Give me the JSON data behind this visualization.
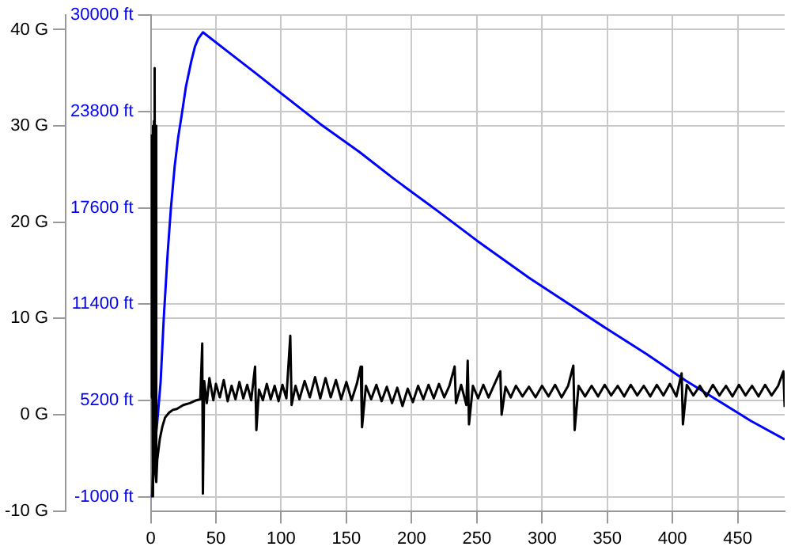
{
  "chart_data": {
    "type": "line",
    "xlim": [
      0,
      486
    ],
    "xticks": [
      0,
      50,
      100,
      150,
      200,
      250,
      300,
      350,
      400,
      450
    ],
    "ylim": [
      -1900,
      30000
    ],
    "yticks": [
      {
        "value": -1000,
        "label": "-1000 ft"
      },
      {
        "value": 5200,
        "label": "5200 ft"
      },
      {
        "value": 11400,
        "label": "11400 ft"
      },
      {
        "value": 17600,
        "label": "17600 ft"
      },
      {
        "value": 23800,
        "label": "23800 ft"
      },
      {
        "value": 30000,
        "label": "30000 ft"
      }
    ],
    "y2lim": [
      -10,
      41.5
    ],
    "y2ticks": [
      {
        "value": -10,
        "label": "-10 G"
      },
      {
        "value": 0,
        "label": "0 G"
      },
      {
        "value": 10,
        "label": "10 G"
      },
      {
        "value": 20,
        "label": "20 G"
      },
      {
        "value": 30,
        "label": "30 G"
      },
      {
        "value": 40,
        "label": "40 G"
      }
    ],
    "grid": true,
    "legend": false,
    "marker": "none",
    "line_style": "solid",
    "series": [
      {
        "color": "#0000ff",
        "x": [
          0,
          1,
          2.2,
          5,
          7.6,
          10,
          13,
          15.5,
          18.4,
          21,
          23.8,
          27,
          31,
          34,
          36.5,
          40,
          60,
          80,
          99.6,
          130,
          160,
          186,
          220,
          250,
          290,
          321,
          350,
          380,
          410,
          435,
          460,
          486
        ],
        "values": [
          -1000,
          -900,
          1400,
          3800,
          6400,
          10500,
          14700,
          17600,
          20300,
          22100,
          23600,
          25400,
          27000,
          28000,
          28500,
          28900,
          27600,
          26300,
          25000,
          23000,
          21200,
          19500,
          17400,
          15500,
          13100,
          11400,
          9800,
          8200,
          6500,
          5200,
          3900,
          2700
        ]
      },
      {
        "color": "#000000",
        "axis": "y2",
        "x": [
          0,
          0.5,
          1,
          1.5,
          2,
          2.5,
          3,
          3.5,
          4,
          4.5,
          5,
          7,
          9,
          11,
          14,
          17,
          20,
          25,
          30,
          35,
          38,
          39.5,
          40,
          41,
          43,
          45,
          48,
          50,
          53,
          56,
          59,
          62,
          65,
          68,
          71,
          74,
          77,
          80,
          81,
          83,
          86,
          89,
          92,
          95,
          98,
          101,
          104,
          107,
          108,
          111,
          114,
          118,
          122,
          126,
          130,
          134,
          138,
          142,
          146,
          150,
          154,
          158,
          161,
          162,
          165,
          169,
          173,
          177,
          181,
          185,
          189,
          193,
          197,
          201,
          205,
          209,
          213,
          217,
          221,
          225,
          229,
          233,
          234,
          238,
          242,
          243,
          244,
          247,
          251,
          255,
          259,
          263,
          268,
          269,
          272,
          276,
          280,
          285,
          290,
          295,
          300,
          305,
          310,
          315,
          320,
          324,
          325,
          328,
          333,
          338,
          343,
          348,
          353,
          358,
          363,
          368,
          373,
          378,
          383,
          388,
          393,
          398,
          403,
          407,
          408,
          411,
          416,
          421,
          426,
          431,
          436,
          441,
          446,
          451,
          456,
          461,
          466,
          471,
          476,
          481,
          485,
          486
        ],
        "values": [
          1.8,
          29,
          17,
          30,
          -8.5,
          30.5,
          36,
          -6,
          30,
          -7,
          -4.7,
          -2.5,
          -1.2,
          -0.3,
          0.2,
          0.5,
          0.6,
          1.0,
          1.2,
          1.5,
          1.6,
          7.4,
          -8.2,
          3.5,
          1.2,
          3.8,
          1.5,
          3.2,
          1.8,
          3.6,
          1.4,
          3.0,
          1.6,
          3.4,
          1.7,
          3.1,
          1.5,
          5.0,
          -1.6,
          2.6,
          1.5,
          3.2,
          1.6,
          3.0,
          1.4,
          3.1,
          1.7,
          8.2,
          1.0,
          3.0,
          1.6,
          3.5,
          1.8,
          3.9,
          1.7,
          3.8,
          1.8,
          3.6,
          1.6,
          3.4,
          1.5,
          3.2,
          5.0,
          -1.3,
          3.0,
          1.6,
          3.1,
          1.4,
          2.9,
          1.2,
          2.8,
          0.9,
          2.7,
          1.3,
          3.0,
          1.6,
          3.1,
          1.7,
          3.2,
          1.8,
          3.0,
          5.0,
          1.2,
          3.1,
          1.0,
          5.6,
          -1.0,
          3.0,
          1.7,
          3.1,
          1.8,
          3.0,
          4.5,
          0.0,
          2.9,
          1.8,
          3.0,
          1.9,
          2.9,
          1.8,
          3.0,
          1.9,
          3.1,
          1.8,
          3.0,
          5.1,
          -1.6,
          3.0,
          1.9,
          3.0,
          1.9,
          3.1,
          2.0,
          3.0,
          1.9,
          3.1,
          2.0,
          3.0,
          1.9,
          3.1,
          2.0,
          3.2,
          1.9,
          4.3,
          -1.0,
          3.1,
          2.0,
          3.0,
          1.9,
          3.1,
          2.0,
          3.0,
          1.9,
          3.1,
          2.0,
          3.0,
          1.9,
          3.1,
          2.0,
          3.0,
          4.5,
          0.8
        ]
      }
    ]
  }
}
